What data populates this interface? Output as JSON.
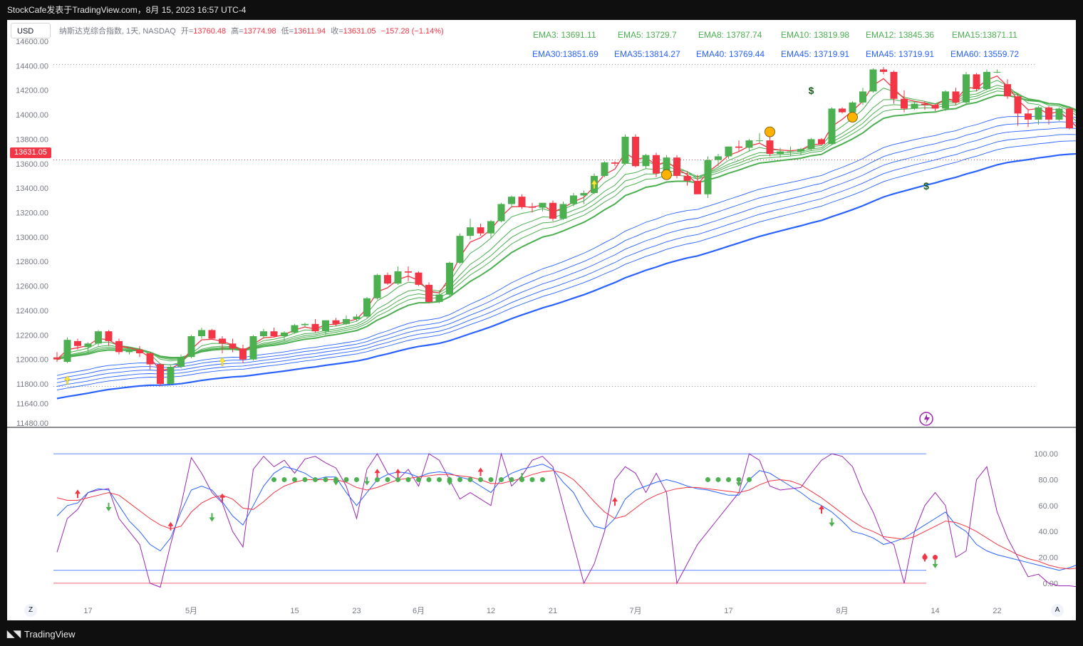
{
  "header": {
    "title": "StockCafe发表于TradingView.com，8月 15, 2023 16:57 UTC-4"
  },
  "currency_button": "USD",
  "legend": {
    "symbol": "纳斯达克综合指数, 1天, NASDAQ",
    "open_label": "开=",
    "open": "13760.48",
    "high_label": "高=",
    "high": "13774.98",
    "low_label": "低=",
    "low": "13611.94",
    "close_label": "收=",
    "close": "13631.05",
    "change": "−157.28 (−1.14%)"
  },
  "ema_labels_top": [
    {
      "text": "EMA3: 13691.11"
    },
    {
      "text": "EMA5: 13729.7"
    },
    {
      "text": "EMA8: 13787.74"
    },
    {
      "text": "EMA10: 13819.98"
    },
    {
      "text": "EMA12: 13845.36"
    },
    {
      "text": "EMA15:13871.11"
    }
  ],
  "ema_labels_bottom": [
    {
      "text": "EMA30:13851.69"
    },
    {
      "text": "EMA35:13814.27"
    },
    {
      "text": "EMA40: 13769.44"
    },
    {
      "text": "EMA45: 13719.91"
    },
    {
      "text": "EMA45: 13719.91"
    },
    {
      "text": "EMA60: 13559.72"
    }
  ],
  "last_price_badge": "13631.05",
  "colors": {
    "up": "#4caf50",
    "down": "#f23645",
    "ema_short": "#4caf50",
    "ema_long": "#2962ff",
    "ema3": "#f23645",
    "stoch_k": "#2962ff",
    "stoch_d": "#f23645",
    "stoch_raw": "#9c27b0"
  },
  "footer": {
    "brand": "TradingView",
    "z_button": "Z",
    "a_button": "A"
  },
  "chart_data": [
    {
      "type": "candlestick",
      "title": "纳斯达克综合指数, 1天, NASDAQ",
      "ylim": [
        11480,
        14600
      ],
      "y_ticks": [
        "14600.00",
        "14400.00",
        "14200.00",
        "14000.00",
        "13800.00",
        "13600.00",
        "13400.00",
        "13200.00",
        "13000.00",
        "12800.00",
        "12600.00",
        "12400.00",
        "12200.00",
        "12000.00",
        "11800.00",
        "11640.00",
        "11480.00"
      ],
      "x_ticks": [
        {
          "label": "17",
          "index": 3
        },
        {
          "label": "5月",
          "index": 13
        },
        {
          "label": "15",
          "index": 23
        },
        {
          "label": "23",
          "index": 29
        },
        {
          "label": "6月",
          "index": 35
        },
        {
          "label": "12",
          "index": 42
        },
        {
          "label": "21",
          "index": 48
        },
        {
          "label": "7月",
          "index": 56
        },
        {
          "label": "17",
          "index": 65
        },
        {
          "label": "8月",
          "index": 76
        },
        {
          "label": "14",
          "index": 85
        },
        {
          "label": "22",
          "index": 91
        }
      ],
      "ohlc": [
        [
          12017,
          12060,
          11980,
          12000
        ],
        [
          11980,
          12180,
          11970,
          12160
        ],
        [
          12150,
          12170,
          12080,
          12110
        ],
        [
          12100,
          12140,
          12050,
          12130
        ],
        [
          12130,
          12240,
          12110,
          12230
        ],
        [
          12230,
          12240,
          12110,
          12150
        ],
        [
          12150,
          12170,
          12040,
          12060
        ],
        [
          12060,
          12100,
          12040,
          12080
        ],
        [
          12080,
          12110,
          12020,
          12050
        ],
        [
          12050,
          12060,
          11920,
          11960
        ],
        [
          11960,
          11970,
          11780,
          11800
        ],
        [
          11800,
          11950,
          11790,
          11940
        ],
        [
          11940,
          12040,
          11930,
          12020
        ],
        [
          12020,
          12200,
          12010,
          12190
        ],
        [
          12190,
          12260,
          12170,
          12240
        ],
        [
          12240,
          12250,
          12170,
          12170
        ],
        [
          12170,
          12190,
          12050,
          12130
        ],
        [
          12130,
          12170,
          12060,
          12090
        ],
        [
          12090,
          12120,
          11970,
          12000
        ],
        [
          12000,
          12200,
          11990,
          12190
        ],
        [
          12190,
          12250,
          12170,
          12230
        ],
        [
          12230,
          12260,
          12180,
          12190
        ],
        [
          12190,
          12230,
          12150,
          12220
        ],
        [
          12220,
          12290,
          12210,
          12280
        ],
        [
          12280,
          12300,
          12260,
          12290
        ],
        [
          12290,
          12330,
          12220,
          12230
        ],
        [
          12230,
          12320,
          12200,
          12320
        ],
        [
          12320,
          12340,
          12270,
          12290
        ],
        [
          12290,
          12360,
          12280,
          12330
        ],
        [
          12330,
          12370,
          12310,
          12350
        ],
        [
          12350,
          12510,
          12340,
          12500
        ],
        [
          12500,
          12700,
          12490,
          12690
        ],
        [
          12690,
          12710,
          12610,
          12620
        ],
        [
          12620,
          12760,
          12610,
          12720
        ],
        [
          12720,
          12760,
          12640,
          12710
        ],
        [
          12710,
          12720,
          12600,
          12610
        ],
        [
          12610,
          12630,
          12460,
          12470
        ],
        [
          12470,
          12560,
          12460,
          12530
        ],
        [
          12530,
          12800,
          12520,
          12790
        ],
        [
          12790,
          13030,
          12780,
          13010
        ],
        [
          13010,
          13150,
          12980,
          13080
        ],
        [
          13080,
          13110,
          13010,
          13030
        ],
        [
          13030,
          13140,
          12990,
          13130
        ],
        [
          13130,
          13280,
          13120,
          13270
        ],
        [
          13270,
          13340,
          13240,
          13330
        ],
        [
          13330,
          13350,
          13230,
          13250
        ],
        [
          13250,
          13280,
          13200,
          13240
        ],
        [
          13240,
          13260,
          13210,
          13280
        ],
        [
          13280,
          13300,
          13130,
          13150
        ],
        [
          13150,
          13290,
          13140,
          13270
        ],
        [
          13270,
          13360,
          13250,
          13340
        ],
        [
          13340,
          13380,
          13270,
          13360
        ],
        [
          13360,
          13520,
          13350,
          13500
        ],
        [
          13500,
          13620,
          13490,
          13610
        ],
        [
          13610,
          13620,
          13580,
          13600
        ],
        [
          13600,
          13840,
          13590,
          13820
        ],
        [
          13820,
          13840,
          13570,
          13580
        ],
        [
          13580,
          13680,
          13560,
          13670
        ],
        [
          13670,
          13690,
          13490,
          13520
        ],
        [
          13520,
          13670,
          13490,
          13650
        ],
        [
          13650,
          13670,
          13480,
          13500
        ],
        [
          13500,
          13540,
          13420,
          13460
        ],
        [
          13460,
          13510,
          13360,
          13350
        ],
        [
          13350,
          13660,
          13320,
          13630
        ],
        [
          13630,
          13680,
          13580,
          13660
        ],
        [
          13660,
          13740,
          13640,
          13740
        ],
        [
          13740,
          13790,
          13700,
          13730
        ],
        [
          13730,
          13800,
          13700,
          13790
        ],
        [
          13790,
          13850,
          13770,
          13790
        ],
        [
          13790,
          13820,
          13660,
          13680
        ],
        [
          13680,
          13730,
          13650,
          13700
        ],
        [
          13700,
          13740,
          13660,
          13700
        ],
        [
          13700,
          13730,
          13670,
          13720
        ],
        [
          13720,
          13810,
          13710,
          13800
        ],
        [
          13800,
          13810,
          13760,
          13760
        ],
        [
          13760,
          14060,
          13760,
          14050
        ],
        [
          14050,
          14060,
          14010,
          14020
        ],
        [
          14020,
          14110,
          13990,
          14100
        ],
        [
          14100,
          14220,
          14080,
          14190
        ],
        [
          14190,
          14380,
          14180,
          14370
        ],
        [
          14370,
          14390,
          14330,
          14350
        ],
        [
          14350,
          14360,
          14090,
          14130
        ],
        [
          14130,
          14200,
          14020,
          14050
        ],
        [
          14050,
          14110,
          14040,
          14090
        ],
        [
          14090,
          14110,
          14040,
          14080
        ],
        [
          14080,
          14090,
          14030,
          14050
        ],
        [
          14050,
          14200,
          14030,
          14190
        ],
        [
          14190,
          14220,
          14080,
          14100
        ],
        [
          14100,
          14350,
          14080,
          14330
        ],
        [
          14330,
          14340,
          14190,
          14210
        ],
        [
          14210,
          14370,
          14200,
          14350
        ],
        [
          14350,
          14370,
          14340,
          14350
        ],
        [
          14250,
          14290,
          14130,
          14150
        ],
        [
          14150,
          14170,
          13910,
          14010
        ],
        [
          14010,
          14040,
          13900,
          13960
        ],
        [
          13960,
          14070,
          13920,
          14060
        ],
        [
          14060,
          14070,
          13920,
          13960
        ],
        [
          13960,
          14060,
          13950,
          14050
        ],
        [
          14050,
          14060,
          13880,
          13890
        ],
        [
          13890,
          13960,
          13780,
          13790
        ],
        [
          13790,
          13800,
          13700,
          13710
        ],
        [
          13710,
          13780,
          13680,
          13770
        ],
        [
          13770,
          13790,
          13690,
          13690
        ],
        [
          13690,
          13760,
          13650,
          13660
        ],
        [
          13660,
          13780,
          13550,
          13780
        ],
        [
          13760,
          13775,
          13612,
          13631
        ]
      ],
      "ema_series_note": "EMA ribbons: EMA3,5,8,10,12,15 (green) and EMA30,35,40,45,45,60 (blue)"
    },
    {
      "type": "line",
      "title": "",
      "ylim": [
        -5,
        105
      ],
      "y_ticks": [
        "100.00",
        "80.00",
        "60.00",
        "40.00",
        "20.00",
        "0.00"
      ],
      "levels": [
        100,
        10,
        0
      ],
      "series": [
        {
          "key": "raw",
          "values": [
            24,
            50,
            57,
            70,
            72,
            73,
            50,
            40,
            30,
            0,
            -3,
            30,
            60,
            97,
            85,
            70,
            62,
            40,
            28,
            88,
            98,
            90,
            95,
            85,
            96,
            98,
            93,
            89,
            75,
            50,
            88,
            100,
            85,
            80,
            88,
            75,
            100,
            95,
            80,
            65,
            70,
            65,
            60,
            100,
            75,
            83,
            95,
            98,
            90,
            60,
            30,
            0,
            15,
            40,
            80,
            90,
            85,
            70,
            85,
            70,
            0,
            15,
            30,
            40,
            50,
            60,
            70,
            100,
            95,
            75,
            72,
            73,
            74,
            85,
            95,
            100,
            98,
            90,
            70,
            55,
            35,
            30,
            0,
            40,
            60,
            70,
            60,
            20,
            25,
            80,
            90,
            55,
            35,
            20,
            5,
            7,
            0,
            -2,
            -2,
            -3,
            21,
            10
          ]
        },
        {
          "key": "k",
          "values": [
            52,
            60,
            62,
            70,
            73,
            72,
            60,
            48,
            40,
            30,
            25,
            35,
            55,
            72,
            75,
            72,
            63,
            52,
            45,
            60,
            75,
            85,
            90,
            88,
            85,
            80,
            82,
            82,
            70,
            60,
            70,
            80,
            84,
            86,
            85,
            82,
            85,
            86,
            85,
            82,
            80,
            75,
            70,
            80,
            85,
            88,
            90,
            92,
            88,
            78,
            70,
            55,
            44,
            42,
            50,
            65,
            72,
            75,
            78,
            80,
            78,
            75,
            73,
            72,
            70,
            68,
            68,
            80,
            87,
            85,
            80,
            75,
            70,
            64,
            60,
            55,
            48,
            40,
            38,
            35,
            30,
            32,
            35,
            40,
            45,
            50,
            55,
            45,
            40,
            30,
            25,
            22,
            20,
            18,
            16,
            14,
            12,
            10,
            12,
            15,
            20,
            15
          ]
        },
        {
          "key": "d",
          "values": [
            66,
            64,
            64,
            66,
            68,
            70,
            68,
            62,
            56,
            50,
            45,
            42,
            44,
            55,
            62,
            66,
            68,
            65,
            58,
            57,
            63,
            70,
            75,
            78,
            80,
            80,
            80,
            80,
            78,
            74,
            72,
            74,
            77,
            80,
            81,
            82,
            83,
            84,
            84,
            83,
            82,
            80,
            77,
            77,
            79,
            81,
            84,
            86,
            87,
            85,
            80,
            72,
            63,
            55,
            50,
            52,
            58,
            64,
            68,
            71,
            73,
            74,
            74,
            73,
            72,
            71,
            70,
            72,
            76,
            79,
            80,
            79,
            76,
            71,
            66,
            60,
            54,
            48,
            43,
            40,
            36,
            35,
            34,
            36,
            40,
            44,
            48,
            47,
            44,
            40,
            35,
            30,
            26,
            22,
            19,
            17,
            14,
            12,
            11,
            12,
            13,
            13
          ]
        }
      ]
    }
  ]
}
